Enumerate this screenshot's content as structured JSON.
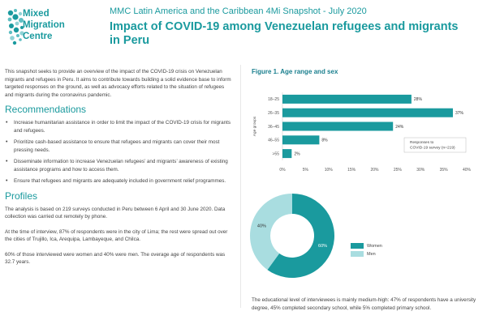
{
  "header": {
    "org_name_lines": [
      "Mixed",
      "Migration",
      "Centre"
    ],
    "subtitle": "MMC Latin America and the Caribbean 4Mi Snapshot - July 2020",
    "title": "Impact of COVID-19 among Venezuelan refugees and migrants in Peru"
  },
  "intro": "This snapshot seeks to provide an overview of the impact of the COVID-19 crisis on Venezuelan migrants and refugees in Peru. It aims to contribute towards building a solid evidence base to inform targeted responses on the ground, as well as advocacy efforts related to the situation of refugees and migrants during the coronavirus pandemic.",
  "recommendations": {
    "title": "Recommendations",
    "items": [
      "Increase humanitarian assistance in order to limit the impact of the COVID-19 crisis for migrants and refugees.",
      "Prioritize cash-based assistance to ensure that refugees and migrants can cover their most pressing needs.",
      "Disseminate information to increase Venezuelan refugees’ and migrants’ awareness of existing assistance programs and how to access them.",
      "Ensure that refugees and migrants are adequately included in government relief programmes."
    ]
  },
  "profiles": {
    "title": "Profiles",
    "paragraphs": [
      "The analysis is based on 219 surveys conducted in Peru between 6 April and 30 June 2020. Data collection was carried out remotely by phone.",
      "At the time of interview, 87% of respondents were in the city of Lima; the rest were spread out over the cities of Trujillo, Ica, Arequipa, Lambayeque, and Chilca.",
      "60% of those interviewed were women and 40% were men. The overage age of respondents was 32.7 years."
    ]
  },
  "figure1": {
    "title": "Figure 1. Age range and sex"
  },
  "education_text": "The educational level of interviewees is mainly medium-high: 47% of respondents have a university degree, 45% completed secondary school, while 5% completed primary school.",
  "chart_data": [
    {
      "type": "bar",
      "orientation": "horizontal",
      "categories": [
        "18–25",
        "26–35",
        "36–45",
        "46–55",
        ">55"
      ],
      "values": [
        28,
        37,
        24,
        8,
        2
      ],
      "value_labels": [
        "28%",
        "37%",
        "24%",
        "8%",
        "2%"
      ],
      "ylabel": "Age groups",
      "xticks": [
        "0%",
        "5%",
        "10%",
        "15%",
        "20%",
        "25%",
        "30%",
        "35%",
        "40%"
      ],
      "xlim": [
        0,
        40
      ],
      "annotation": [
        "Responses to",
        "COVID-19 survey (n=219)"
      ],
      "color": "#1a9a9e"
    },
    {
      "type": "pie",
      "donut": true,
      "categories": [
        "Women",
        "Men"
      ],
      "values": [
        60,
        40
      ],
      "value_labels": [
        "60%",
        "40%"
      ],
      "colors": [
        "#1a9a9e",
        "#a9dde0"
      ]
    }
  ]
}
